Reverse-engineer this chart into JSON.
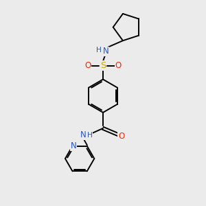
{
  "background_color": "#ebebeb",
  "bond_color": "#000000",
  "atom_colors": {
    "N": "#2255cc",
    "O": "#ff2200",
    "S": "#ccaa00",
    "C": "#000000"
  },
  "figsize": [
    3.0,
    3.0
  ],
  "dpi": 100,
  "lw": 1.4,
  "fs": 8.5
}
